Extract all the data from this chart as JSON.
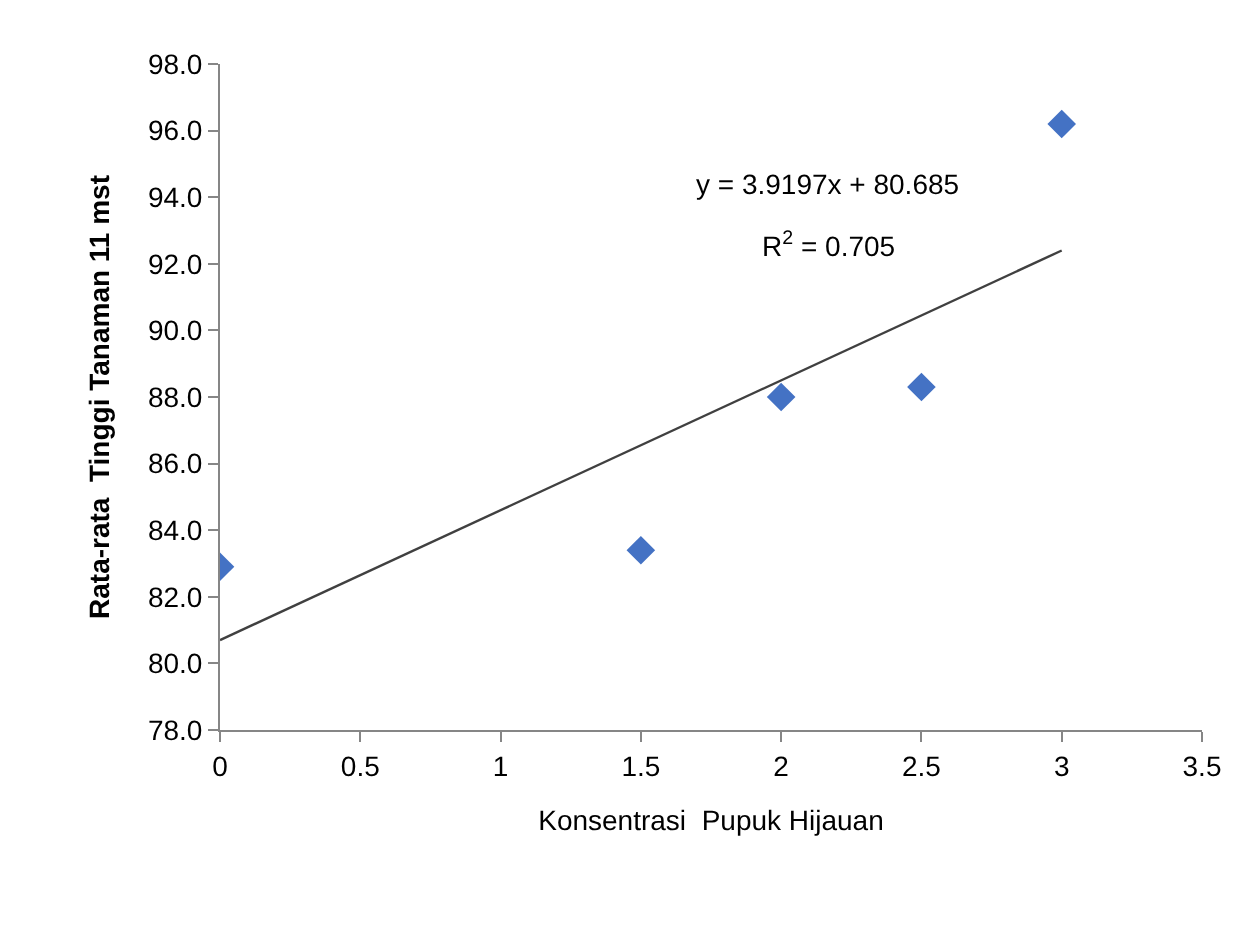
{
  "chart_data": {
    "type": "scatter",
    "xlabel": "Konsentrasi  Pupuk Hijauan",
    "ylabel": "Rata-rata  Tinggi Tanaman 11 mst",
    "series": [
      {
        "color": "#4472c4",
        "marker": "diamond",
        "x": [
          0,
          1.5,
          2,
          2.5,
          3
        ],
        "values": [
          82.9,
          83.4,
          88.0,
          88.3,
          96.2
        ]
      },
      {
        "type": "line",
        "color": "#404040",
        "marker": "none",
        "line_style": "solid",
        "x": [
          0,
          3
        ],
        "values": [
          80.7,
          92.4
        ]
      }
    ],
    "annotations": [
      "y = 3.9197x + 80.685",
      "R$^{2}$ = 0.705"
    ],
    "xlim": [
      0,
      3.5
    ],
    "xticks": [
      0,
      0.5,
      1,
      1.5,
      2,
      2.5,
      3,
      3.5
    ],
    "ylim": [
      78,
      98
    ],
    "yticks": [
      {
        "value": 78,
        "label": "78.0"
      },
      {
        "value": 80,
        "label": "80.0"
      },
      {
        "value": 82,
        "label": "82.0"
      },
      {
        "value": 84,
        "label": "84.0"
      },
      {
        "value": 86,
        "label": "86.0"
      },
      {
        "value": 88,
        "label": "88.0"
      },
      {
        "value": 90,
        "label": "90.0"
      },
      {
        "value": 92,
        "label": "92.0"
      },
      {
        "value": 94,
        "label": "94.0"
      },
      {
        "value": 96,
        "label": "96.0"
      },
      {
        "value": 98,
        "label": "98.0"
      }
    ]
  }
}
